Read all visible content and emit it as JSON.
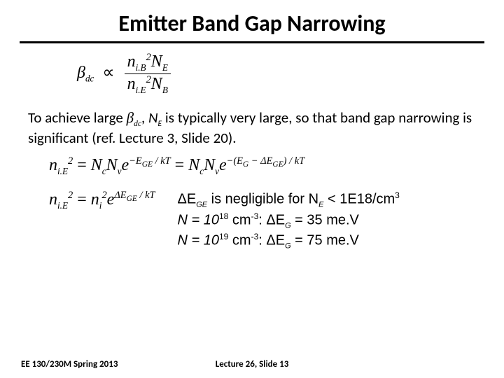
{
  "title": "Emitter Band Gap Narrowing",
  "eq1": {
    "beta": "β",
    "beta_sub": "dc",
    "prop": "∝",
    "num_n": "n",
    "num_n_sub": "i.B",
    "num_N": "N",
    "num_N_sub": "E",
    "den_n": "n",
    "den_n_sub": "i.E",
    "den_N": "N",
    "den_N_sub": "B",
    "sq": "2"
  },
  "para": {
    "p1": "To achieve large ",
    "beta": "β",
    "beta_sub": "dc",
    "p2": ", ",
    "N": "N",
    "N_sub": "E",
    "p3": " is typically very large, so that band gap narrowing is significant (ref. Lecture 3, Slide 20)."
  },
  "eq2": {
    "lhs_n": "n",
    "lhs_sub": "i.E",
    "lhs_sup": "2",
    "eqs": " = ",
    "Nc": "N",
    "Nc_sub": "c",
    "Nv": "N",
    "Nv_sub": "v",
    "e1": "e",
    "exp1_a": "−E",
    "exp1_a_sub": "GE",
    "exp1_b": " / kT",
    "mid_eq": " = ",
    "Nc2": "N",
    "Nc2_sub": "c",
    "Nv2": "N",
    "Nv2_sub": "v",
    "e2": "e",
    "exp2_a": "−(E",
    "exp2_a_sub": "G",
    "exp2_b": " − ΔE",
    "exp2_b_sub": "GE",
    "exp2_c": ") / kT"
  },
  "eq3": {
    "lhs_n": "n",
    "lhs_sub": "i.E",
    "lhs_sup": "2",
    "eqs": " = ",
    "ni": "n",
    "ni_sub": "i",
    "ni_sup": "2",
    "e": "e",
    "exp_a": "ΔE",
    "exp_a_sub": "GE",
    "exp_b": " / kT"
  },
  "notes": {
    "l1a": "ΔE",
    "l1a_sub": "GE",
    "l1b": " is negligible for N",
    "l1b_sub": "E",
    "l1c": " < 1E18/cm",
    "l1c_sup": "3",
    "l2a": "N = 10",
    "l2a_sup": "18",
    "l2b": " cm",
    "l2b_sup": "-3",
    "l2c": ": ΔE",
    "l2c_sub": "G",
    "l2d": " = 35 me.V",
    "l3a": "N = 10",
    "l3a_sup": "19",
    "l3b": " cm",
    "l3b_sup": "-3",
    "l3c": ": ΔE",
    "l3c_sub": "G",
    "l3d": " = 75 me.V"
  },
  "footer": {
    "left": "EE 130/230M Spring 2013",
    "center": "Lecture 26, Slide 13"
  }
}
